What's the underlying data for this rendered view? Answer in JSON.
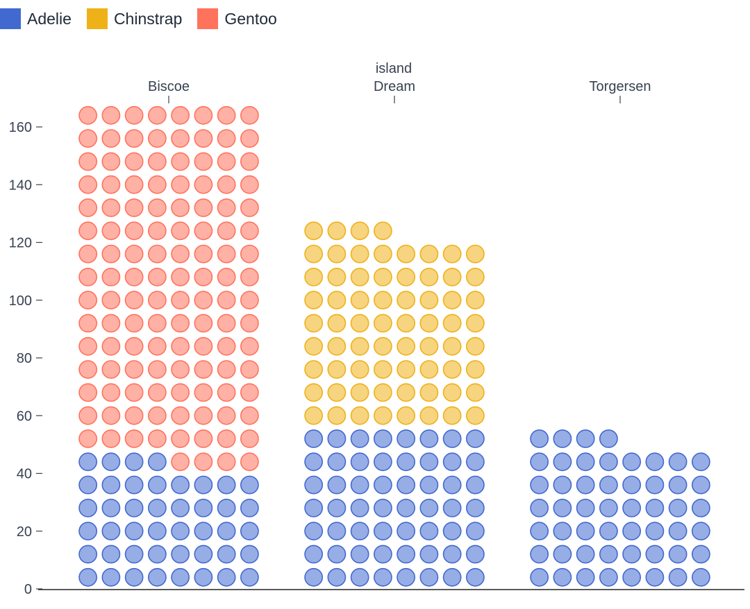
{
  "legend": {
    "items": [
      {
        "label": "Adelie",
        "color": "#4269d0"
      },
      {
        "label": "Chinstrap",
        "color": "#efb118"
      },
      {
        "label": "Gentoo",
        "color": "#ff725c"
      }
    ]
  },
  "chart_data": {
    "type": "waffle",
    "facet_label": "island",
    "facets": [
      "Biscoe",
      "Dream",
      "Torgersen"
    ],
    "series": [
      {
        "name": "Adelie",
        "values": [
          44,
          56,
          52
        ]
      },
      {
        "name": "Chinstrap",
        "values": [
          0,
          68,
          0
        ]
      },
      {
        "name": "Gentoo",
        "values": [
          124,
          0,
          0
        ]
      }
    ],
    "colors": {
      "Adelie": "#4269d0",
      "Chinstrap": "#efb118",
      "Gentoo": "#ff725c"
    },
    "units_per_cell": 1,
    "cells_per_row": 8,
    "y_ticks": [
      0,
      20,
      40,
      60,
      80,
      100,
      120,
      140,
      160
    ],
    "ylim": [
      0,
      168
    ]
  }
}
